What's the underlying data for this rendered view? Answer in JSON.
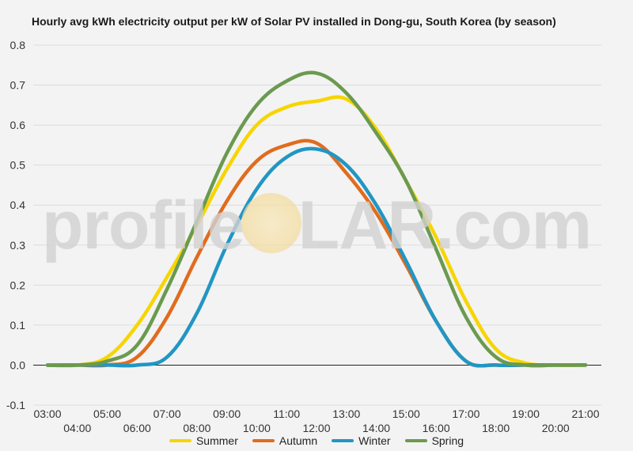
{
  "chart_data": {
    "type": "line",
    "title": "Hourly avg kWh electricity output per kW of Solar PV installed in Dong-gu, South Korea (by season)",
    "xlabel": "",
    "ylabel": "",
    "ylim": [
      -0.1,
      0.8
    ],
    "yticks": [
      "0.8",
      "0.7",
      "0.6",
      "0.5",
      "0.4",
      "0.3",
      "0.2",
      "0.1",
      "0.0",
      "-0.1"
    ],
    "yticks_values": [
      0.8,
      0.7,
      0.6,
      0.5,
      0.4,
      0.3,
      0.2,
      0.1,
      0.0,
      -0.1
    ],
    "categories": [
      "03:00",
      "04:00",
      "05:00",
      "06:00",
      "07:00",
      "08:00",
      "09:00",
      "10:00",
      "11:00",
      "12:00",
      "13:00",
      "14:00",
      "15:00",
      "16:00",
      "17:00",
      "18:00",
      "19:00",
      "20:00",
      "21:00"
    ],
    "grid": true,
    "legend_position": "bottom",
    "series": [
      {
        "name": "Summer",
        "color": "#f7d500",
        "values": [
          0.0,
          0.0,
          0.02,
          0.1,
          0.22,
          0.35,
          0.49,
          0.6,
          0.645,
          0.66,
          0.665,
          0.59,
          0.46,
          0.32,
          0.16,
          0.04,
          0.005,
          0.0,
          0.0
        ]
      },
      {
        "name": "Autumn",
        "color": "#e06c1e",
        "values": [
          0.0,
          0.0,
          0.0,
          0.02,
          0.12,
          0.27,
          0.41,
          0.51,
          0.55,
          0.555,
          0.48,
          0.38,
          0.25,
          0.11,
          0.01,
          0.0,
          0.0,
          0.0,
          0.0
        ]
      },
      {
        "name": "Winter",
        "color": "#2196c4",
        "values": [
          0.0,
          0.0,
          0.0,
          0.0,
          0.02,
          0.13,
          0.3,
          0.44,
          0.52,
          0.54,
          0.5,
          0.4,
          0.26,
          0.11,
          0.01,
          0.0,
          0.0,
          0.0,
          0.0
        ]
      },
      {
        "name": "Spring",
        "color": "#6a9a4f",
        "values": [
          0.0,
          0.0,
          0.01,
          0.05,
          0.19,
          0.36,
          0.53,
          0.65,
          0.71,
          0.73,
          0.68,
          0.58,
          0.46,
          0.29,
          0.12,
          0.02,
          0.0,
          0.0,
          0.0
        ]
      }
    ]
  },
  "watermark": {
    "pre": "profile",
    "post": "LAR.com"
  }
}
